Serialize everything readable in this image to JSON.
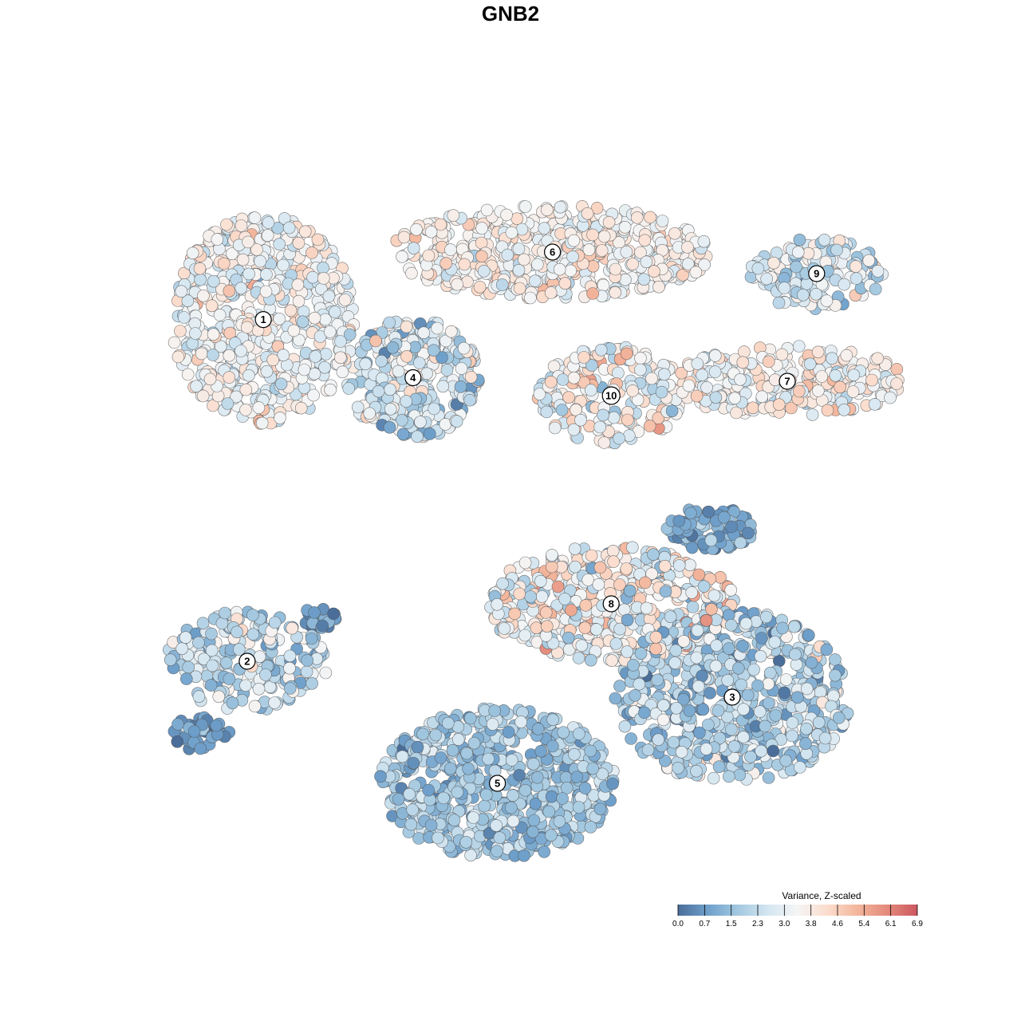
{
  "title": "GNB2",
  "chart_data": {
    "type": "scatter",
    "title": "GNB2",
    "xlabel": "",
    "ylabel": "",
    "xlim": [
      0,
      100
    ],
    "ylim": [
      0,
      100
    ],
    "grid": false,
    "colorbar": {
      "title": "Variance, Z-scaled",
      "min": 0.0,
      "max": 6.9,
      "ticks": [
        "0.0",
        "0.7",
        "1.5",
        "2.3",
        "3.0",
        "3.8",
        "4.6",
        "5.4",
        "6.1",
        "6.9"
      ],
      "colors": [
        "#4a6e99",
        "#6fa0cb",
        "#a3c8e0",
        "#d4e6f1",
        "#f5f5f5",
        "#fbdccc",
        "#f3b69c",
        "#e38a7c",
        "#cc5760"
      ],
      "placement": "bottom-right"
    },
    "clusters": [
      {
        "label": "1",
        "x": 13.6,
        "y": 76.6,
        "rx": 12.5,
        "ry": 14.5,
        "n": 600,
        "mean": 3.3,
        "sd": 0.7
      },
      {
        "label": "2",
        "x": 11.4,
        "y": 29.0,
        "rx": 11.0,
        "ry": 7.0,
        "n": 220,
        "mean": 2.3,
        "sd": 0.8
      },
      {
        "label": "3",
        "x": 77.5,
        "y": 24.0,
        "rx": 16.0,
        "ry": 12.0,
        "n": 650,
        "mean": 2.0,
        "sd": 0.8
      },
      {
        "label": "4",
        "x": 34.0,
        "y": 68.5,
        "rx": 9.0,
        "ry": 8.5,
        "n": 280,
        "mean": 2.6,
        "sd": 0.9
      },
      {
        "label": "5",
        "x": 45.5,
        "y": 12.0,
        "rx": 16.0,
        "ry": 10.5,
        "n": 650,
        "mean": 1.7,
        "sd": 0.6
      },
      {
        "label": "6",
        "x": 53.0,
        "y": 86.0,
        "rx": 22.0,
        "ry": 6.5,
        "n": 500,
        "mean": 3.6,
        "sd": 0.6
      },
      {
        "label": "7",
        "x": 85.0,
        "y": 68.0,
        "rx": 16.0,
        "ry": 5.0,
        "n": 260,
        "mean": 3.5,
        "sd": 0.7
      },
      {
        "label": "8",
        "x": 61.0,
        "y": 37.0,
        "rx": 17.0,
        "ry": 8.0,
        "n": 480,
        "mean": 3.4,
        "sd": 1.0
      },
      {
        "label": "9",
        "x": 89.0,
        "y": 83.0,
        "rx": 9.0,
        "ry": 5.0,
        "n": 150,
        "mean": 2.8,
        "sd": 0.8
      },
      {
        "label": "10",
        "x": 61.0,
        "y": 66.0,
        "rx": 10.0,
        "ry": 7.0,
        "n": 200,
        "mean": 3.4,
        "sd": 0.8
      },
      {
        "label": "",
        "x": 5.0,
        "y": 19.0,
        "rx": 4.0,
        "ry": 2.5,
        "n": 40,
        "mean": 0.7,
        "sd": 0.4
      },
      {
        "label": "",
        "x": 74.5,
        "y": 47.5,
        "rx": 6.0,
        "ry": 3.0,
        "n": 100,
        "mean": 1.1,
        "sd": 0.5
      },
      {
        "label": "",
        "x": 21.0,
        "y": 35.0,
        "rx": 2.5,
        "ry": 1.5,
        "n": 20,
        "mean": 0.7,
        "sd": 0.4
      }
    ]
  }
}
